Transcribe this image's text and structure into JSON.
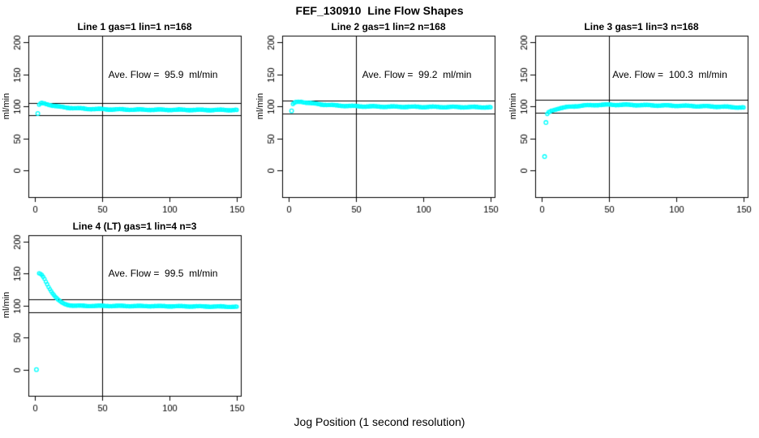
{
  "page": {
    "main_title": "FEF_130910  Line Flow Shapes",
    "x_axis_label": "Jog Position (1 second resolution)"
  },
  "colors": {
    "background": "#ffffff",
    "axis": "#000000",
    "text": "#000000",
    "points": "#00ffff"
  },
  "chart_data": [
    {
      "type": "scatter",
      "title": "Line 1 gas=1 lin=1 n=168",
      "gas": 1,
      "lin": 1,
      "n": 168,
      "annotation": "Ave. Flow =  95.9  ml/min",
      "ave_flow_ml_min": 95.9,
      "ylabel": "ml/min",
      "x_ticks": [
        0,
        50,
        100,
        150
      ],
      "y_ticks": [
        0,
        50,
        100,
        150,
        200
      ],
      "xlim": [
        -5,
        153
      ],
      "ylim": [
        -41,
        210
      ],
      "grid": false,
      "ref_vline_x": 50,
      "ref_hlines": [
        105.5,
        86.3
      ],
      "series": [
        [
          3,
          102
        ],
        [
          4,
          104.5
        ],
        [
          5,
          105
        ],
        [
          7,
          104.5
        ],
        [
          10,
          103
        ],
        [
          14,
          101
        ],
        [
          18,
          99.5
        ],
        [
          23,
          98.3
        ],
        [
          30,
          97.2
        ],
        [
          40,
          96.2
        ],
        [
          55,
          95.5
        ],
        [
          75,
          95
        ],
        [
          100,
          94.8
        ],
        [
          130,
          94.5
        ],
        [
          150,
          94.5
        ]
      ],
      "isolated_points": [
        [
          2,
          89
        ]
      ],
      "x_step": 1,
      "noise": 0.8
    },
    {
      "type": "scatter",
      "title": "Line 2 gas=1 lin=2 n=168",
      "gas": 1,
      "lin": 2,
      "n": 168,
      "annotation": "Ave. Flow =  99.2  ml/min",
      "ave_flow_ml_min": 99.2,
      "ylabel": "ml/min",
      "x_ticks": [
        0,
        50,
        100,
        150
      ],
      "y_ticks": [
        0,
        50,
        100,
        150,
        200
      ],
      "xlim": [
        -5,
        153
      ],
      "ylim": [
        -41,
        210
      ],
      "grid": false,
      "ref_vline_x": 50,
      "ref_hlines": [
        109.1,
        89.3
      ],
      "series": [
        [
          3,
          103
        ],
        [
          4,
          105.5
        ],
        [
          6,
          107
        ],
        [
          9,
          107.5
        ],
        [
          13,
          106
        ],
        [
          18,
          104.5
        ],
        [
          25,
          103
        ],
        [
          35,
          101.5
        ],
        [
          50,
          100.3
        ],
        [
          70,
          99.7
        ],
        [
          100,
          99.3
        ],
        [
          130,
          99
        ],
        [
          150,
          98.7
        ]
      ],
      "isolated_points": [
        [
          2,
          93
        ]
      ],
      "x_step": 1,
      "noise": 0.8
    },
    {
      "type": "scatter",
      "title": "Line 3 gas=1 lin=3 n=168",
      "gas": 1,
      "lin": 3,
      "n": 168,
      "annotation": "Ave. Flow =  100.3  ml/min",
      "ave_flow_ml_min": 100.3,
      "ylabel": "ml/min",
      "x_ticks": [
        0,
        50,
        100,
        150
      ],
      "y_ticks": [
        0,
        50,
        100,
        150,
        200
      ],
      "xlim": [
        -5,
        153
      ],
      "ylim": [
        -41,
        210
      ],
      "grid": false,
      "ref_vline_x": 50,
      "ref_hlines": [
        110.3,
        90.3
      ],
      "series": [
        [
          4,
          88
        ],
        [
          5,
          90.5
        ],
        [
          7,
          93
        ],
        [
          10,
          95.5
        ],
        [
          14,
          97.5
        ],
        [
          19,
          99
        ],
        [
          25,
          100.5
        ],
        [
          32,
          101.5
        ],
        [
          40,
          102.3
        ],
        [
          50,
          102.7
        ],
        [
          62,
          102.5
        ],
        [
          75,
          102
        ],
        [
          90,
          101.5
        ],
        [
          105,
          101
        ],
        [
          120,
          100.3
        ],
        [
          135,
          99.5
        ],
        [
          150,
          98.3
        ]
      ],
      "isolated_points": [
        [
          2,
          22
        ],
        [
          3,
          75
        ]
      ],
      "x_step": 1,
      "noise": 0.8
    },
    {
      "type": "scatter",
      "title": "Line 4 (LT) gas=1 lin=4 n=3",
      "gas": 1,
      "lin": 4,
      "n": 3,
      "annotation": "Ave. Flow =  99.5  ml/min",
      "ave_flow_ml_min": 99.5,
      "ylabel": "ml/min",
      "x_ticks": [
        0,
        50,
        100,
        150
      ],
      "y_ticks": [
        0,
        50,
        100,
        150,
        200
      ],
      "xlim": [
        -5,
        153
      ],
      "ylim": [
        -41,
        210
      ],
      "grid": false,
      "ref_vline_x": 50,
      "ref_hlines": [
        109.5,
        89.6
      ],
      "series": [
        [
          3,
          150
        ],
        [
          4,
          149.5
        ],
        [
          5,
          147.5
        ],
        [
          6,
          145
        ],
        [
          7,
          141.5
        ],
        [
          8,
          137.5
        ],
        [
          9,
          133.5
        ],
        [
          10,
          129.5
        ],
        [
          11,
          126
        ],
        [
          12,
          122.5
        ],
        [
          13,
          119.5
        ],
        [
          14,
          116.5
        ],
        [
          15,
          114
        ],
        [
          16,
          111.5
        ],
        [
          17,
          109.5
        ],
        [
          18,
          107.5
        ],
        [
          19,
          106
        ],
        [
          20,
          104.5
        ],
        [
          22,
          102.5
        ],
        [
          24,
          101.3
        ],
        [
          27,
          100.3
        ],
        [
          30,
          99.8
        ],
        [
          40,
          99.6
        ],
        [
          60,
          99.5
        ],
        [
          90,
          99.2
        ],
        [
          120,
          98.8
        ],
        [
          150,
          98.3
        ]
      ],
      "isolated_points": [
        [
          1,
          0
        ]
      ],
      "x_step": 1,
      "noise": 0.6
    }
  ]
}
